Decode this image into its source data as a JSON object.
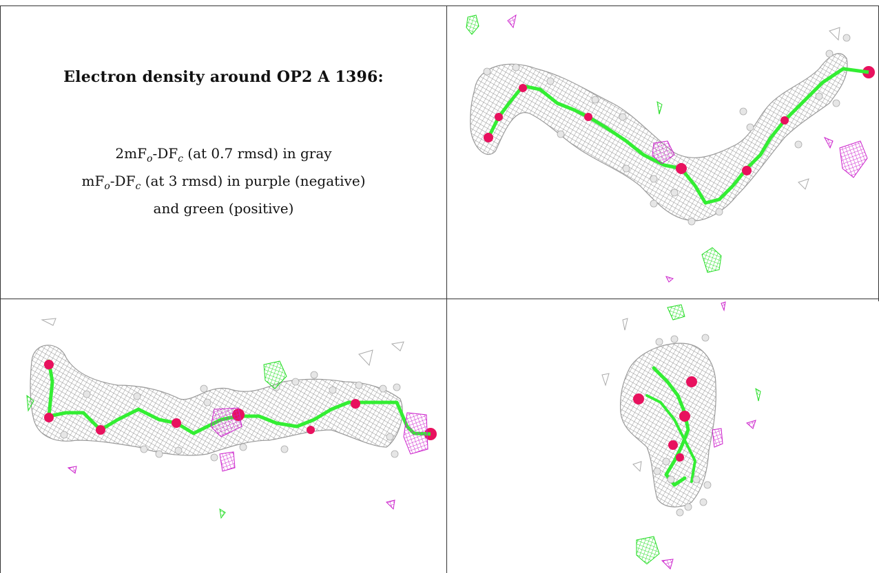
{
  "title": "Electron density around OP2 A 1396:",
  "legend": {
    "line1_pre": "2mF",
    "line1_mid": "-DF",
    "line1_post": " (at 0.7 rmsd) in gray",
    "line2_pre": "mF",
    "line2_mid": "-DF",
    "line2_post": " (at 3 rmsd) in purple (negative)",
    "line3": "and green (positive)",
    "sub_o": "o",
    "sub_c": "c"
  },
  "colors": {
    "mesh_gray": "#8c8c8c",
    "negative_purple": "#cc22cc",
    "positive_green": "#22dd22",
    "atom_carbon": "#33ee33",
    "atom_oxygen": "#e8115e",
    "atom_hydrogen": "#e0e0e0",
    "border": "#333333"
  },
  "panels": [
    {
      "name": "view-top-right"
    },
    {
      "name": "view-bottom-left"
    },
    {
      "name": "view-bottom-right"
    }
  ]
}
